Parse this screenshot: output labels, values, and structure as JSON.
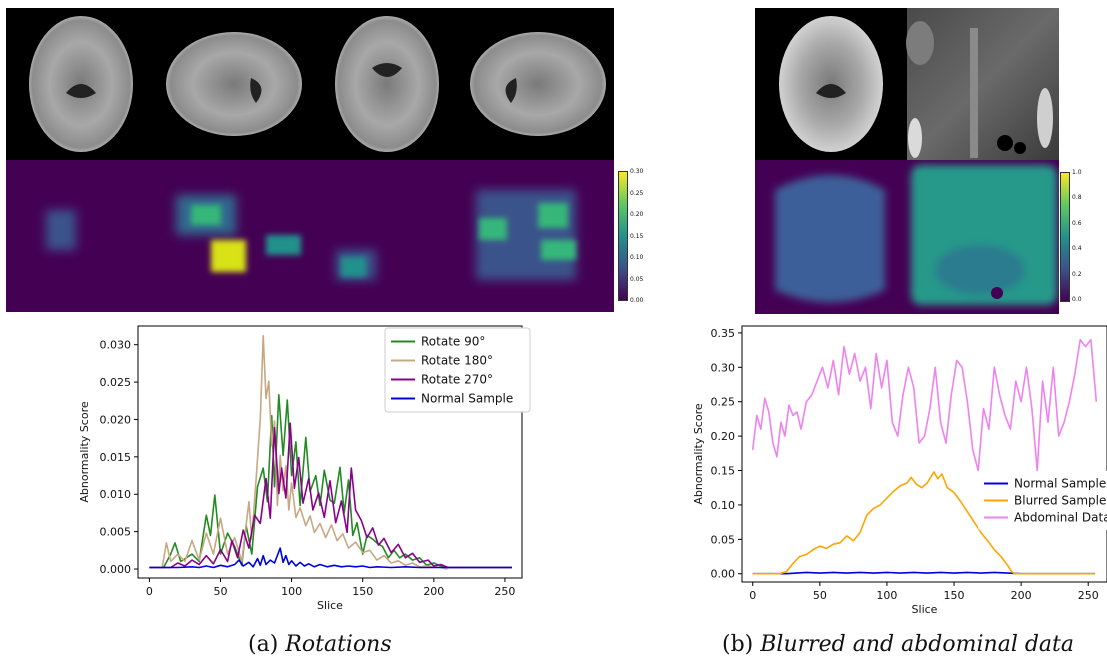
{
  "colorbar_a": {
    "ticks": [
      "0.30",
      "0.25",
      "0.20",
      "0.15",
      "0.10",
      "0.05",
      "0.00"
    ]
  },
  "colorbar_b": {
    "ticks": [
      "1.0",
      "0.8",
      "0.6",
      "0.4",
      "0.2",
      "0.0"
    ]
  },
  "captions": {
    "a_label": "(a)",
    "a_text": "Rotations",
    "b_label": "(b)",
    "b_text": "Blurred and abdominal data"
  },
  "colors": {
    "viridis_bg": "#440154",
    "rotate90": "#228b22",
    "rotate180": "#c8a882",
    "rotate270": "#8b008b",
    "normal": "#0000dd",
    "blurred": "#ffa500",
    "abdominal": "#ee82ee"
  },
  "chart_data": [
    {
      "type": "line",
      "xlabel": "Slice",
      "ylabel": "Abnormality Score",
      "xlim": [
        -8,
        262
      ],
      "ylim": [
        -0.0012,
        0.0325
      ],
      "xticks": [
        0,
        50,
        100,
        150,
        200,
        250
      ],
      "xtick_labels": [
        "0",
        "50",
        "100",
        "150",
        "200",
        "250"
      ],
      "yticks": [
        0,
        0.005,
        0.01,
        0.015,
        0.02,
        0.025,
        0.03
      ],
      "ytick_labels": [
        "0.000",
        "0.005",
        "0.010",
        "0.015",
        "0.020",
        "0.025",
        "0.030"
      ],
      "legend": "top-right",
      "series": [
        {
          "name": "Rotate 90°",
          "color": "#228b22",
          "x": [
            0,
            10,
            15,
            18,
            22,
            30,
            35,
            40,
            43,
            46,
            50,
            55,
            60,
            65,
            68,
            72,
            76,
            80,
            83,
            86,
            88,
            91,
            94,
            97,
            100,
            103,
            106,
            110,
            113,
            117,
            120,
            123,
            127,
            130,
            134,
            137,
            140,
            143,
            146,
            150,
            153,
            157,
            160,
            164,
            168,
            172,
            176,
            180,
            185,
            190,
            195,
            200,
            205,
            210,
            255
          ],
          "y": [
            0.0002,
            0.0002,
            0.002,
            0.0035,
            0.001,
            0.002,
            0.001,
            0.0072,
            0.0045,
            0.0099,
            0.002,
            0.0048,
            0.003,
            0.0005,
            0.0058,
            0.002,
            0.011,
            0.0135,
            0.009,
            0.0205,
            0.011,
            0.0233,
            0.0152,
            0.0226,
            0.0125,
            0.017,
            0.0085,
            0.0176,
            0.0104,
            0.0125,
            0.0085,
            0.0132,
            0.0092,
            0.0088,
            0.0136,
            0.0075,
            0.0119,
            0.0045,
            0.0062,
            0.002,
            0.0045,
            0.004,
            0.0035,
            0.003,
            0.0015,
            0.0025,
            0.0015,
            0.002,
            0.0012,
            0.0015,
            0.0005,
            0.0008,
            0.0004,
            0.0002,
            0.0002
          ]
        },
        {
          "name": "Rotate 180°",
          "color": "#c8a882",
          "x": [
            0,
            9,
            12,
            15,
            20,
            25,
            30,
            35,
            40,
            45,
            50,
            55,
            60,
            65,
            70,
            72,
            75,
            78,
            80,
            82,
            84,
            86,
            88,
            90,
            92,
            94,
            96,
            98,
            100,
            103,
            106,
            110,
            113,
            116,
            120,
            124,
            128,
            132,
            136,
            140,
            145,
            150,
            155,
            160,
            165,
            170,
            175,
            180,
            185,
            190,
            195,
            200,
            205,
            209,
            210,
            255
          ],
          "y": [
            0.0002,
            0.0002,
            0.0035,
            0.001,
            0.002,
            0.001,
            0.0038,
            0.0012,
            0.0048,
            0.002,
            0.0068,
            0.002,
            0.0042,
            0.001,
            0.009,
            0.004,
            0.0118,
            0.0201,
            0.0312,
            0.0228,
            0.0251,
            0.0165,
            0.0198,
            0.0085,
            0.0152,
            0.0105,
            0.0138,
            0.0079,
            0.0115,
            0.0069,
            0.0082,
            0.0058,
            0.0071,
            0.0049,
            0.0061,
            0.0042,
            0.0059,
            0.0038,
            0.0047,
            0.0028,
            0.0036,
            0.0022,
            0.0025,
            0.0012,
            0.0018,
            0.0008,
            0.0011,
            0.0005,
            0.0008,
            0.0003,
            0.0004,
            0.0003,
            0.0002,
            0.0,
            0.0002,
            0.0002
          ]
        },
        {
          "name": "Rotate 270°",
          "color": "#8b008b",
          "x": [
            0,
            15,
            20,
            25,
            30,
            35,
            40,
            45,
            50,
            55,
            58,
            62,
            66,
            70,
            74,
            78,
            82,
            85,
            88,
            91,
            93,
            96,
            99,
            102,
            105,
            108,
            112,
            115,
            119,
            123,
            127,
            131,
            135,
            139,
            142,
            145,
            149,
            153,
            157,
            161,
            165,
            170,
            175,
            180,
            185,
            190,
            196,
            200,
            205,
            210,
            255
          ],
          "y": [
            0.0002,
            0.0002,
            0.0008,
            0.0004,
            0.0012,
            0.0006,
            0.0018,
            0.0007,
            0.0026,
            0.001,
            0.0038,
            0.0015,
            0.0052,
            0.0028,
            0.0072,
            0.0061,
            0.0121,
            0.0068,
            0.0189,
            0.0101,
            0.0135,
            0.0095,
            0.0195,
            0.0108,
            0.0149,
            0.0088,
            0.0121,
            0.0079,
            0.0102,
            0.0069,
            0.0118,
            0.0062,
            0.0091,
            0.0049,
            0.0135,
            0.0079,
            0.0065,
            0.0042,
            0.0055,
            0.0032,
            0.0041,
            0.0022,
            0.0033,
            0.0015,
            0.0021,
            0.0009,
            0.0012,
            0.0004,
            0.0006,
            0.0002,
            0.0002
          ]
        },
        {
          "name": "Normal Sample",
          "color": "#0000dd",
          "x": [
            0,
            20,
            30,
            35,
            40,
            45,
            50,
            55,
            60,
            63,
            66,
            70,
            73,
            76,
            78,
            80,
            82,
            85,
            88,
            92,
            94,
            96,
            98,
            100,
            103,
            106,
            109,
            112,
            116,
            120,
            125,
            130,
            135,
            140,
            145,
            150,
            155,
            160,
            170,
            180,
            190,
            200,
            210,
            255
          ],
          "y": [
            0.0002,
            0.0002,
            0.0003,
            0.0002,
            0.0004,
            0.0002,
            0.0005,
            0.0003,
            0.0006,
            0.0012,
            0.0004,
            0.0009,
            0.0003,
            0.0014,
            0.0005,
            0.0018,
            0.0006,
            0.0012,
            0.0008,
            0.0028,
            0.0009,
            0.0018,
            0.0006,
            0.0011,
            0.0004,
            0.0009,
            0.0004,
            0.0007,
            0.0003,
            0.0006,
            0.0003,
            0.0005,
            0.0003,
            0.0004,
            0.0003,
            0.0004,
            0.0002,
            0.0003,
            0.0002,
            0.0003,
            0.0002,
            0.0002,
            0.0002,
            0.0002
          ]
        }
      ]
    },
    {
      "type": "line",
      "xlabel": "Slice",
      "ylabel": "Abnormality Score",
      "xlim": [
        -8,
        264
      ],
      "ylim": [
        -0.012,
        0.36
      ],
      "xticks": [
        0,
        50,
        100,
        150,
        200,
        250
      ],
      "xtick_labels": [
        "0",
        "50",
        "100",
        "150",
        "200",
        "250"
      ],
      "yticks": [
        0,
        0.05,
        0.1,
        0.15,
        0.2,
        0.25,
        0.3,
        0.35
      ],
      "ytick_labels": [
        "0.00",
        "0.05",
        "0.10",
        "0.15",
        "0.20",
        "0.25",
        "0.30",
        "0.35"
      ],
      "legend": "lower-right",
      "series": [
        {
          "name": "Normal Sample",
          "color": "#0000dd",
          "x": [
            0,
            25,
            40,
            50,
            60,
            70,
            80,
            90,
            100,
            110,
            120,
            130,
            140,
            150,
            160,
            170,
            180,
            190,
            200,
            210,
            255
          ],
          "y": [
            0.0,
            0.0,
            0.002,
            0.001,
            0.002,
            0.001,
            0.002,
            0.001,
            0.002,
            0.001,
            0.002,
            0.001,
            0.002,
            0.001,
            0.002,
            0.001,
            0.002,
            0.001,
            0.0,
            0.0,
            0.0
          ]
        },
        {
          "name": "Blurred Sample",
          "color": "#ffa500",
          "x": [
            0,
            20,
            25,
            30,
            35,
            40,
            45,
            50,
            55,
            60,
            65,
            70,
            75,
            80,
            85,
            90,
            95,
            100,
            105,
            110,
            115,
            118,
            122,
            126,
            130,
            135,
            138,
            141,
            145,
            150,
            155,
            160,
            165,
            170,
            175,
            180,
            185,
            190,
            193,
            195,
            200,
            255
          ],
          "y": [
            0.0,
            0.0,
            0.003,
            0.015,
            0.025,
            0.028,
            0.035,
            0.04,
            0.037,
            0.043,
            0.045,
            0.055,
            0.048,
            0.06,
            0.085,
            0.095,
            0.1,
            0.11,
            0.12,
            0.128,
            0.132,
            0.14,
            0.13,
            0.125,
            0.132,
            0.148,
            0.138,
            0.145,
            0.125,
            0.118,
            0.105,
            0.09,
            0.075,
            0.06,
            0.048,
            0.035,
            0.025,
            0.012,
            0.003,
            0.0,
            0.0,
            0.0
          ]
        },
        {
          "name": "Abdominal Data",
          "color": "#ee82ee",
          "x": [
            0,
            3,
            6,
            9,
            12,
            15,
            18,
            21,
            24,
            27,
            30,
            33,
            36,
            40,
            44,
            48,
            52,
            56,
            60,
            64,
            68,
            72,
            76,
            80,
            84,
            88,
            92,
            96,
            100,
            104,
            108,
            112,
            116,
            120,
            124,
            128,
            132,
            136,
            140,
            144,
            148,
            152,
            156,
            160,
            164,
            168,
            172,
            176,
            180,
            184,
            188,
            192,
            196,
            200,
            204,
            208,
            212,
            216,
            220,
            224,
            228,
            232,
            236,
            240,
            244,
            248,
            252,
            256
          ],
          "y": [
            0.18,
            0.23,
            0.21,
            0.255,
            0.235,
            0.19,
            0.17,
            0.22,
            0.2,
            0.245,
            0.23,
            0.235,
            0.21,
            0.25,
            0.26,
            0.28,
            0.3,
            0.27,
            0.31,
            0.26,
            0.33,
            0.29,
            0.32,
            0.28,
            0.3,
            0.24,
            0.32,
            0.27,
            0.31,
            0.22,
            0.2,
            0.26,
            0.3,
            0.27,
            0.19,
            0.2,
            0.24,
            0.3,
            0.22,
            0.19,
            0.26,
            0.31,
            0.3,
            0.25,
            0.18,
            0.15,
            0.24,
            0.21,
            0.3,
            0.26,
            0.23,
            0.21,
            0.28,
            0.25,
            0.3,
            0.24,
            0.15,
            0.28,
            0.22,
            0.3,
            0.2,
            0.22,
            0.25,
            0.29,
            0.34,
            0.33,
            0.34,
            0.25
          ]
        }
      ]
    }
  ]
}
